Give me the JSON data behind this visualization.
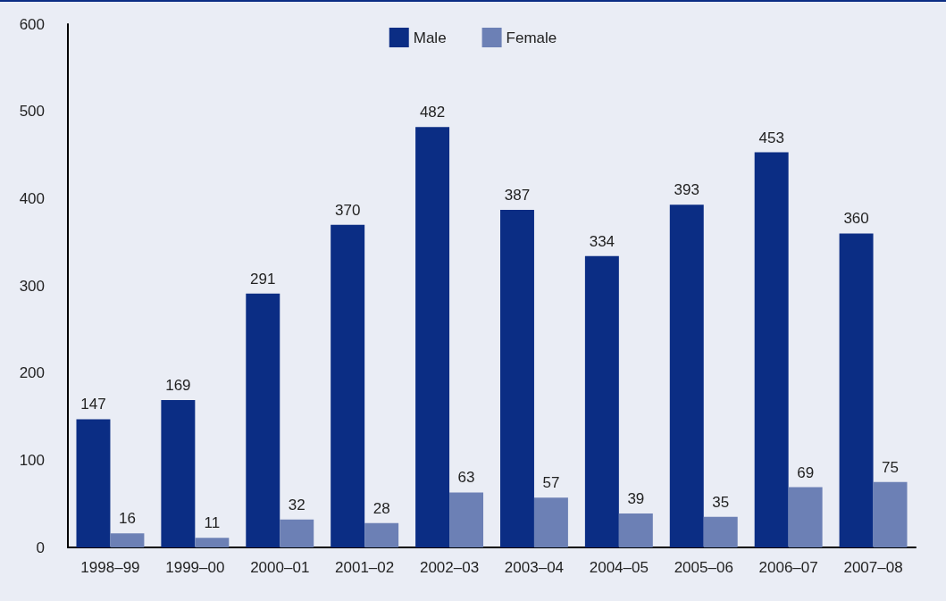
{
  "chart_data": {
    "type": "bar",
    "categories": [
      "1998–99",
      "1999–00",
      "2000–01",
      "2001–02",
      "2002–03",
      "2003–04",
      "2004–05",
      "2005–06",
      "2006–07",
      "2007–08"
    ],
    "series": [
      {
        "name": "Male",
        "color": "#0b2d84",
        "values": [
          147,
          169,
          291,
          370,
          482,
          387,
          334,
          393,
          453,
          360
        ]
      },
      {
        "name": "Female",
        "color": "#6c80b5",
        "values": [
          16,
          11,
          32,
          28,
          63,
          57,
          39,
          35,
          69,
          75
        ]
      }
    ],
    "ylim": [
      0,
      600
    ],
    "yticks": [
      0,
      100,
      200,
      300,
      400,
      500,
      600
    ],
    "data_labels": true,
    "grid": false,
    "legend": "top"
  }
}
